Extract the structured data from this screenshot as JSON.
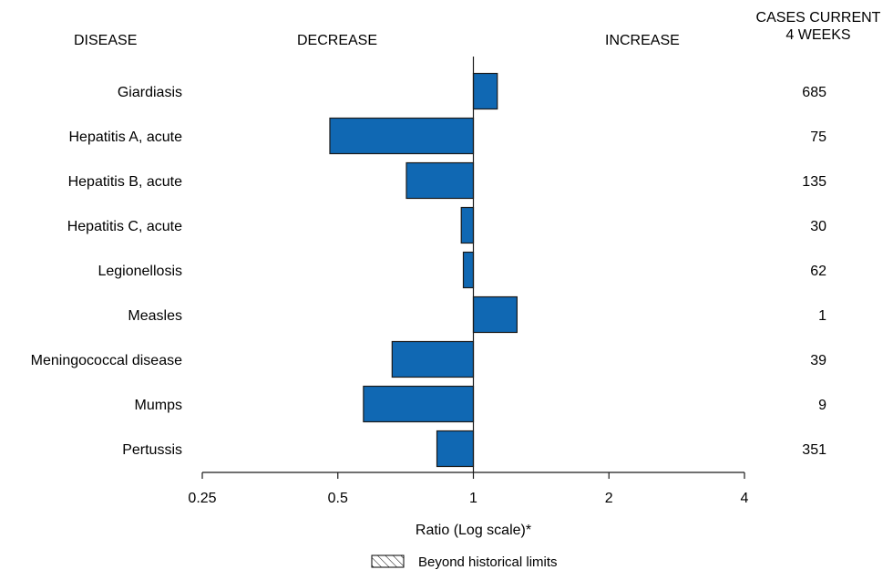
{
  "headers": {
    "disease": "DISEASE",
    "decrease": "DECREASE",
    "increase": "INCREASE",
    "cases_line1": "CASES CURRENT",
    "cases_line2": "4 WEEKS"
  },
  "chart_data": {
    "type": "bar",
    "orientation": "horizontal",
    "scale": "log2",
    "xlabel": "Ratio (Log scale)*",
    "xlim": [
      0.25,
      4
    ],
    "ticks": [
      0.25,
      0.5,
      1,
      2,
      4
    ],
    "tick_labels": [
      "0.25",
      "0.5",
      "1",
      "2",
      "4"
    ],
    "categories": [
      "Giardiasis",
      "Hepatitis A, acute",
      "Hepatitis B, acute",
      "Hepatitis C, acute",
      "Legionellosis",
      "Measles",
      "Meningococcal disease",
      "Mumps",
      "Pertussis"
    ],
    "values": [
      1.13,
      0.48,
      0.71,
      0.94,
      0.95,
      1.25,
      0.66,
      0.57,
      0.83
    ],
    "cases": [
      "685",
      "75",
      "135",
      "30",
      "62",
      "1",
      "39",
      "9",
      "351"
    ],
    "bar_color": "#1068b3",
    "legend": "Beyond historical limits"
  }
}
